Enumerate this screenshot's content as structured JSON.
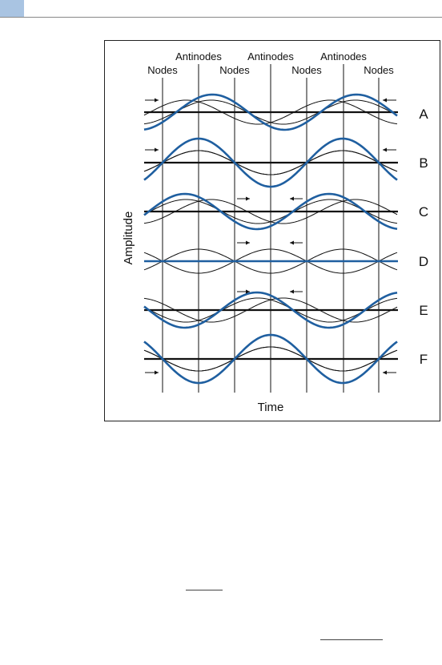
{
  "header": {
    "accent_color": "#a9c4e2"
  },
  "diagram": {
    "top_labels": {
      "antinodes": [
        "Antinodes",
        "Antinodes",
        "Antinodes"
      ],
      "nodes": [
        "Nodes",
        "Nodes",
        "Nodes",
        "Nodes"
      ]
    },
    "rows": [
      {
        "label": "A",
        "phase": "pos",
        "arrows": "outer-in-top"
      },
      {
        "label": "B",
        "phase": "node-peak",
        "arrows": "outer-in-top"
      },
      {
        "label": "C",
        "phase": "neg",
        "arrows": "inner-out-top"
      },
      {
        "label": "D",
        "phase": "zero",
        "arrows": "inner-out-top"
      },
      {
        "label": "E",
        "phase": "neg2",
        "arrows": "inner-in-top"
      },
      {
        "label": "F",
        "phase": "node-trough",
        "arrows": "outer-in-bottom"
      }
    ],
    "y_axis_label": "Amplitude",
    "x_axis_label": "Time",
    "resultant_color": "#1f5fa0",
    "component_color": "#111111"
  }
}
